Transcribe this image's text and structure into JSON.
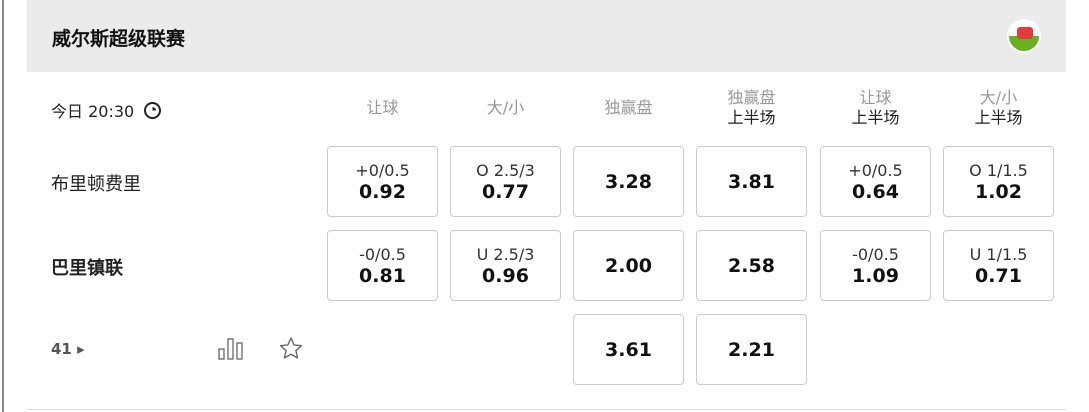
{
  "league": {
    "title": "威尔斯超级联赛",
    "flag": "wales-flag-icon"
  },
  "match": {
    "time": "今日 20:30",
    "more_count": "41"
  },
  "columns": [
    {
      "a": "让球",
      "b": ""
    },
    {
      "a": "大/小",
      "b": ""
    },
    {
      "a": "独赢盘",
      "b": ""
    },
    {
      "a": "独赢盘",
      "b": "上半场"
    },
    {
      "a": "让球",
      "b": "上半场"
    },
    {
      "a": "大/小",
      "b": "上半场"
    }
  ],
  "teams": [
    {
      "name": "布里顿费里",
      "bold": false,
      "odds": [
        {
          "line": "+0/0.5",
          "odd": "0.92"
        },
        {
          "line": "O 2.5/3",
          "odd": "0.77"
        },
        {
          "line": "",
          "odd": "3.28"
        },
        {
          "line": "",
          "odd": "3.81"
        },
        {
          "line": "+0/0.5",
          "odd": "0.64"
        },
        {
          "line": "O 1/1.5",
          "odd": "1.02"
        }
      ]
    },
    {
      "name": "巴里镇联",
      "bold": true,
      "odds": [
        {
          "line": "-0/0.5",
          "odd": "0.81"
        },
        {
          "line": "U 2.5/3",
          "odd": "0.96"
        },
        {
          "line": "",
          "odd": "2.00"
        },
        {
          "line": "",
          "odd": "2.58"
        },
        {
          "line": "-0/0.5",
          "odd": "1.09"
        },
        {
          "line": "U 1/1.5",
          "odd": "0.71"
        }
      ]
    }
  ],
  "draw": {
    "odds": [
      {
        "col": 2,
        "odd": "3.61"
      },
      {
        "col": 3,
        "odd": "2.21"
      }
    ]
  }
}
